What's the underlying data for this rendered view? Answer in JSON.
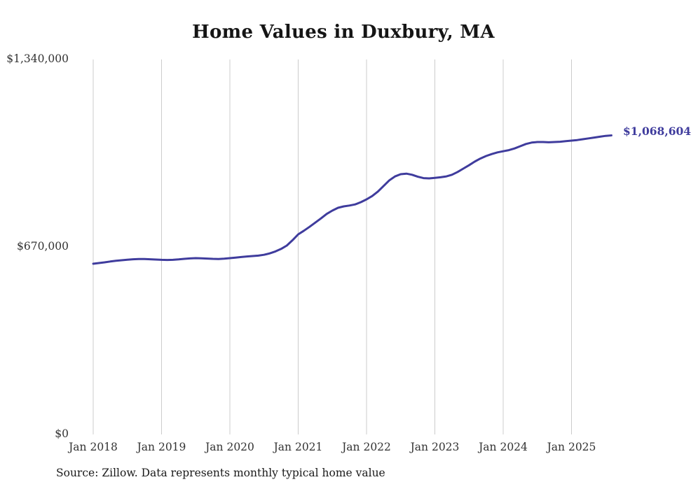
{
  "chart_data": {
    "type": "line",
    "title": "Home Values in Duxbury, MA",
    "source": "Source: Zillow. Data represents monthly typical home value",
    "end_label": "$1,068,604",
    "latest_value": 1068604,
    "line_color": "#3f3c9d",
    "grid_color": "#cccccc",
    "label_color": "#333333",
    "ylim": [
      0,
      1340000
    ],
    "y_ticks": [
      {
        "label": "$0",
        "value": 0
      },
      {
        "label": "$670,000",
        "value": 670000
      },
      {
        "label": "$1,340,000",
        "value": 1340000
      }
    ],
    "x_ticks": [
      "Jan 2018",
      "Jan 2019",
      "Jan 2020",
      "Jan 2021",
      "Jan 2022",
      "Jan 2023",
      "Jan 2024",
      "Jan 2025"
    ],
    "frequency": "monthly",
    "x_start": "Jan 2018",
    "x_end": "Aug 2025",
    "values": [
      610000,
      612500,
      615000,
      618000,
      620500,
      622500,
      624500,
      626000,
      627000,
      627000,
      626000,
      625000,
      624000,
      623500,
      624000,
      625500,
      627500,
      629000,
      630000,
      629500,
      628500,
      627500,
      627000,
      628000,
      630000,
      632000,
      634000,
      636000,
      637500,
      639000,
      642000,
      647000,
      654000,
      663000,
      675000,
      694000,
      715000,
      728000,
      742000,
      757000,
      772000,
      788000,
      800000,
      810000,
      815000,
      818000,
      822000,
      830000,
      840000,
      852000,
      868000,
      888000,
      908000,
      922000,
      930000,
      932000,
      928000,
      921000,
      916000,
      915000,
      917000,
      919000,
      922000,
      928000,
      938000,
      950000,
      962000,
      975000,
      986000,
      995000,
      1002000,
      1008000,
      1012000,
      1016000,
      1022000,
      1030000,
      1038000,
      1043000,
      1045000,
      1045000,
      1044000,
      1045000,
      1046000,
      1048000,
      1050000,
      1052000,
      1055000,
      1058000,
      1061000,
      1064000,
      1067000,
      1068604
    ]
  }
}
